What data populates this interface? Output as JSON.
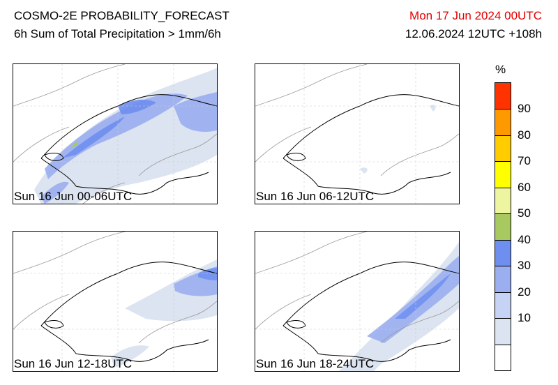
{
  "header": {
    "title": "COSMO-2E PROBABILITY_FORECAST",
    "subtitle": "6h Sum of Total Precipitation > 1mm/6h",
    "valid_time": "Mon 17 Jun 2024 00UTC",
    "init_time": "12.06.2024 12UTC +108h"
  },
  "panels": [
    {
      "label": "Sun 16 Jun 00-06UTC",
      "precip_extent": "wide band across northern Alps and Jura, up to 40-50%"
    },
    {
      "label": "Sun 16 Jun 06-12UTC",
      "precip_extent": "almost none"
    },
    {
      "label": "Sun 16 Jun 12-18UTC",
      "precip_extent": "eastern and southern Alps, 10-30%"
    },
    {
      "label": "Sun 16 Jun 18-24UTC",
      "precip_extent": "band from southwest to northeast, 10-40%"
    }
  ],
  "legend": {
    "unit": "%",
    "ticks": [
      "90",
      "80",
      "70",
      "60",
      "50",
      "40",
      "30",
      "20",
      "10"
    ],
    "colors": [
      "#ff3300",
      "#ff9900",
      "#ffcc00",
      "#ffff00",
      "#eef5a0",
      "#a8c860",
      "#6f8ff0",
      "#9aaef0",
      "#c6d3f5",
      "#dbe4f0",
      "#ffffff"
    ]
  }
}
